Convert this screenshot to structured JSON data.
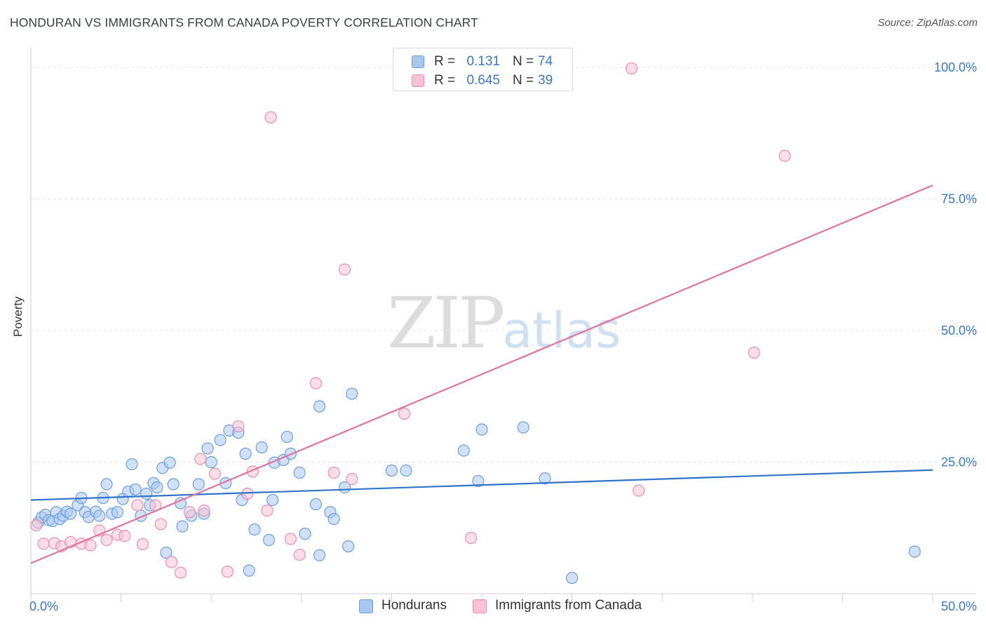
{
  "header": {
    "title": "HONDURAN VS IMMIGRANTS FROM CANADA POVERTY CORRELATION CHART",
    "source": "Source: ZipAtlas.com"
  },
  "watermark": {
    "zip": "ZIP",
    "atlas": "atlas"
  },
  "legend": {
    "r_label": "R =",
    "n_label": "N =",
    "items": [
      {
        "r": "0.131",
        "n": "74",
        "color": "#a9c8f0",
        "edge": "#6c9ee0"
      },
      {
        "r": "0.645",
        "n": "39",
        "color": "#f8c2d4",
        "edge": "#ea8fb0"
      }
    ]
  },
  "bottom_legend": {
    "hondurans": "Hondurans",
    "canada": "Immigrants from Canada"
  },
  "chart_data": {
    "type": "scatter",
    "title": "HONDURAN VS IMMIGRANTS FROM CANADA POVERTY CORRELATION CHART",
    "xlabel": "",
    "ylabel": "Poverty",
    "xlim": [
      0,
      50
    ],
    "ylim": [
      0,
      100
    ],
    "x_tick_labels": [
      "0.0%",
      "50.0%"
    ],
    "y_tick_labels": [
      "25.0%",
      "50.0%",
      "75.0%",
      "100.0%"
    ],
    "y_ticks": [
      25,
      50,
      75,
      100
    ],
    "series": [
      {
        "name": "Hondurans",
        "color": "#6c9ee0",
        "fill": "#a9c8f0",
        "trend": {
          "x": [
            0,
            50
          ],
          "y": [
            17.8,
            23.5
          ],
          "color": "#2f74c8"
        },
        "points": [
          [
            0.4,
            13.5
          ],
          [
            0.6,
            14.5
          ],
          [
            0.8,
            15.0
          ],
          [
            1.0,
            14.0
          ],
          [
            1.2,
            13.8
          ],
          [
            1.4,
            15.5
          ],
          [
            1.6,
            14.2
          ],
          [
            1.8,
            14.8
          ],
          [
            2.0,
            15.6
          ],
          [
            2.2,
            15.2
          ],
          [
            2.6,
            16.8
          ],
          [
            2.8,
            18.2
          ],
          [
            3.0,
            15.5
          ],
          [
            3.2,
            14.6
          ],
          [
            3.6,
            15.6
          ],
          [
            3.8,
            14.8
          ],
          [
            4.0,
            18.2
          ],
          [
            4.2,
            20.8
          ],
          [
            4.5,
            15.2
          ],
          [
            4.8,
            15.5
          ],
          [
            5.1,
            18.0
          ],
          [
            5.4,
            19.4
          ],
          [
            5.6,
            24.6
          ],
          [
            5.8,
            19.8
          ],
          [
            6.1,
            14.8
          ],
          [
            6.4,
            19.0
          ],
          [
            6.6,
            16.8
          ],
          [
            6.8,
            21.0
          ],
          [
            7.0,
            20.2
          ],
          [
            7.3,
            23.9
          ],
          [
            7.5,
            7.8
          ],
          [
            7.7,
            24.9
          ],
          [
            7.9,
            20.8
          ],
          [
            8.3,
            17.2
          ],
          [
            8.4,
            12.8
          ],
          [
            8.9,
            14.8
          ],
          [
            9.3,
            20.8
          ],
          [
            9.6,
            15.2
          ],
          [
            9.8,
            27.6
          ],
          [
            10.0,
            25.0
          ],
          [
            10.5,
            29.2
          ],
          [
            10.8,
            21.0
          ],
          [
            11.0,
            31.0
          ],
          [
            11.5,
            30.6
          ],
          [
            11.7,
            17.8
          ],
          [
            11.9,
            26.6
          ],
          [
            12.1,
            4.4
          ],
          [
            12.4,
            12.2
          ],
          [
            12.8,
            27.8
          ],
          [
            13.2,
            10.2
          ],
          [
            13.4,
            17.8
          ],
          [
            13.5,
            24.9
          ],
          [
            14.0,
            25.4
          ],
          [
            14.2,
            29.8
          ],
          [
            14.4,
            26.6
          ],
          [
            14.9,
            23.0
          ],
          [
            15.2,
            11.4
          ],
          [
            15.8,
            17.0
          ],
          [
            16.0,
            35.6
          ],
          [
            16.0,
            7.3
          ],
          [
            16.6,
            15.5
          ],
          [
            16.8,
            14.2
          ],
          [
            17.4,
            20.2
          ],
          [
            17.6,
            9.0
          ],
          [
            17.8,
            38.0
          ],
          [
            20.0,
            23.4
          ],
          [
            20.8,
            23.4
          ],
          [
            24.0,
            27.2
          ],
          [
            24.8,
            21.4
          ],
          [
            25.0,
            31.2
          ],
          [
            27.3,
            31.6
          ],
          [
            28.5,
            21.9
          ],
          [
            30.0,
            3.0
          ],
          [
            49.0,
            8.0
          ]
        ]
      },
      {
        "name": "Immigrants from Canada",
        "color": "#ea8fb0",
        "fill": "#f8c2d4",
        "trend": {
          "x": [
            0,
            50
          ],
          "y": [
            5.8,
            77.6
          ],
          "color": "#e2739b"
        },
        "points": [
          [
            0.3,
            13.0
          ],
          [
            0.7,
            9.5
          ],
          [
            1.3,
            9.6
          ],
          [
            1.7,
            9.0
          ],
          [
            2.2,
            9.8
          ],
          [
            2.8,
            9.5
          ],
          [
            3.3,
            9.2
          ],
          [
            3.8,
            12.0
          ],
          [
            4.2,
            10.2
          ],
          [
            4.8,
            11.2
          ],
          [
            5.2,
            11.0
          ],
          [
            5.9,
            16.8
          ],
          [
            6.2,
            9.4
          ],
          [
            6.9,
            16.8
          ],
          [
            7.2,
            13.2
          ],
          [
            7.8,
            6.0
          ],
          [
            8.3,
            4.0
          ],
          [
            8.8,
            15.5
          ],
          [
            9.4,
            25.6
          ],
          [
            9.6,
            15.8
          ],
          [
            10.2,
            22.8
          ],
          [
            10.9,
            4.2
          ],
          [
            11.5,
            31.8
          ],
          [
            12.0,
            19.0
          ],
          [
            12.3,
            23.2
          ],
          [
            13.1,
            15.8
          ],
          [
            13.3,
            90.5
          ],
          [
            14.4,
            10.4
          ],
          [
            14.9,
            7.4
          ],
          [
            15.8,
            40.0
          ],
          [
            16.8,
            23.0
          ],
          [
            17.4,
            61.6
          ],
          [
            17.8,
            21.8
          ],
          [
            20.7,
            34.2
          ],
          [
            24.4,
            10.6
          ],
          [
            33.3,
            99.8
          ],
          [
            33.7,
            19.6
          ],
          [
            40.1,
            45.8
          ],
          [
            41.8,
            83.2
          ]
        ]
      }
    ]
  }
}
